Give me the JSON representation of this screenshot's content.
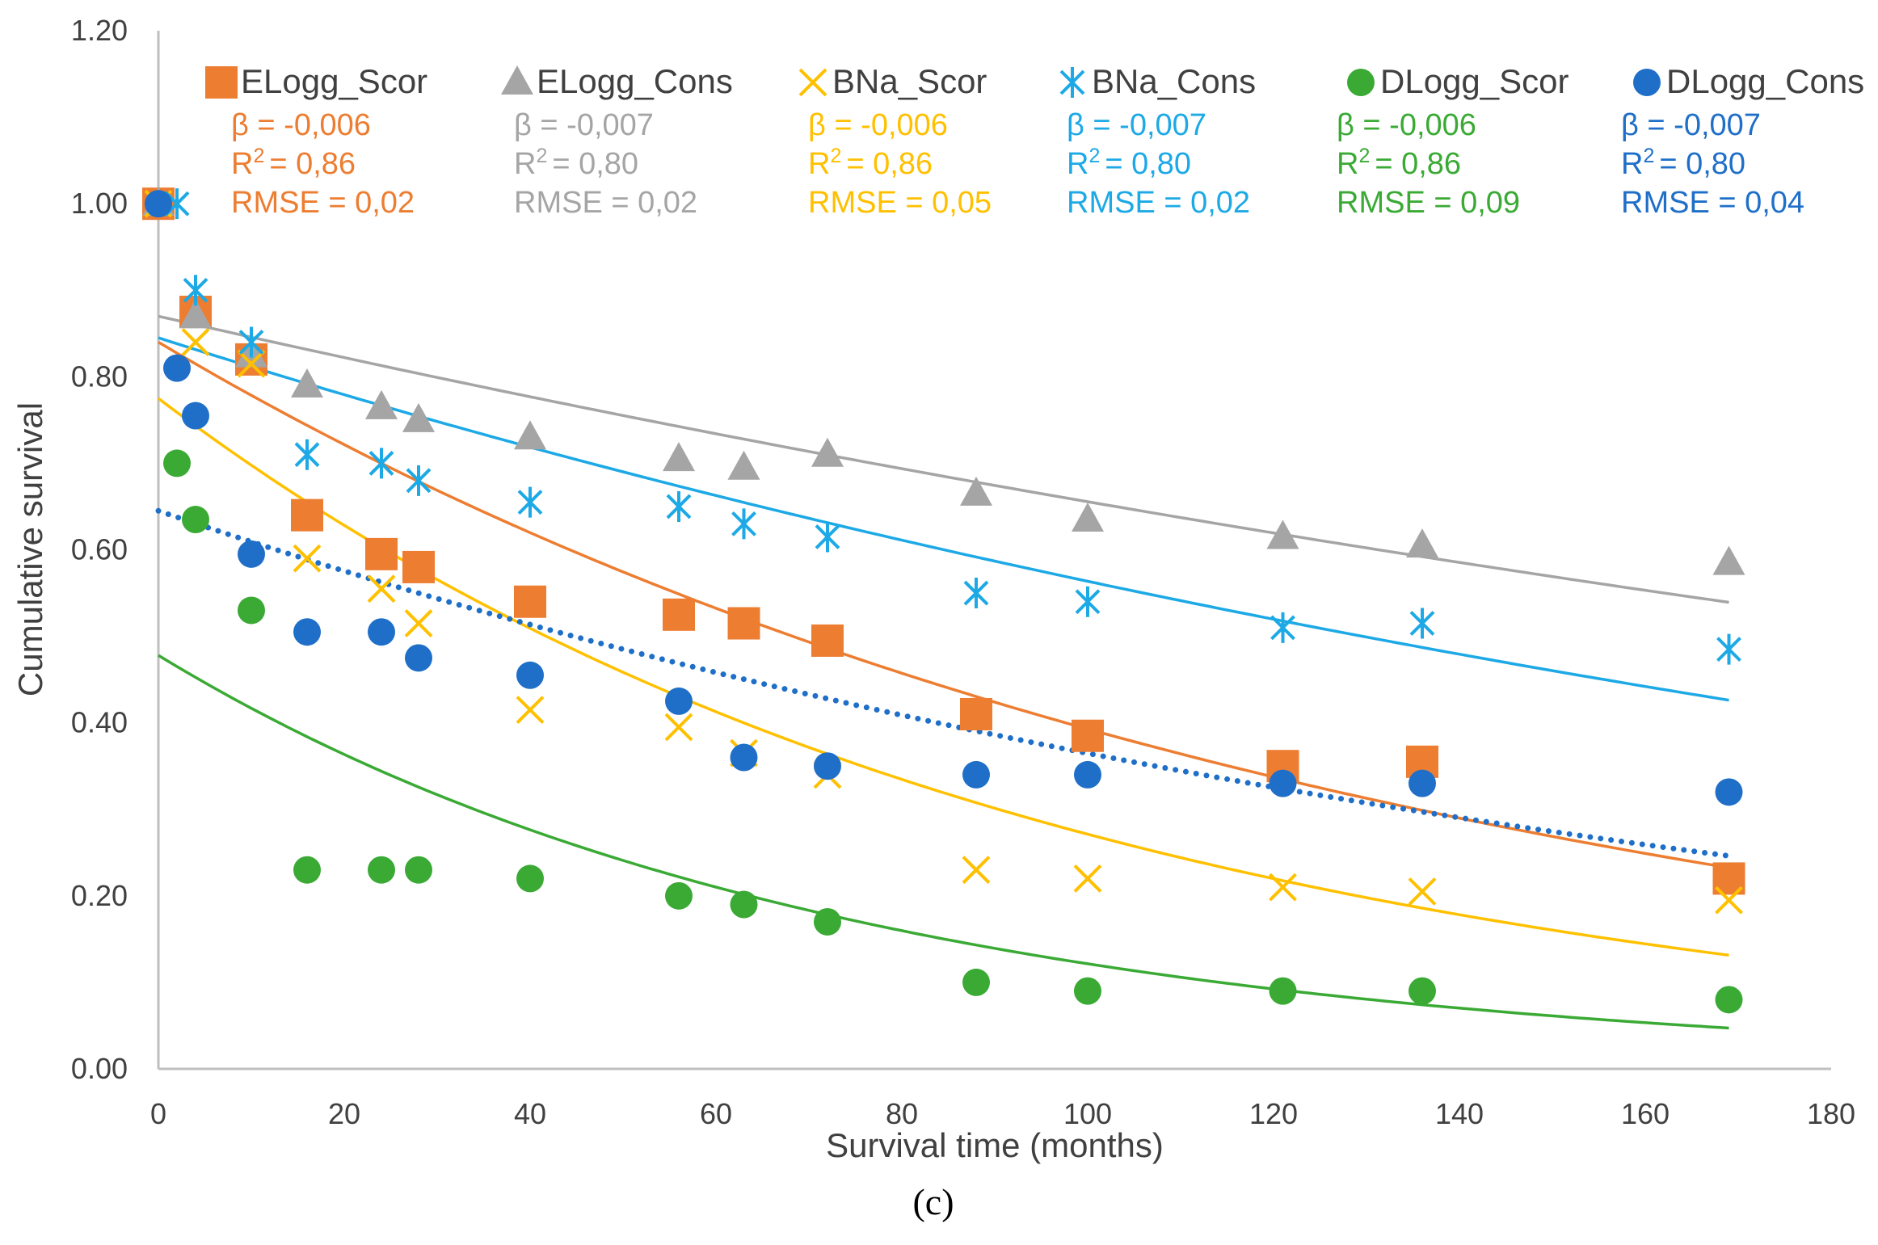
{
  "chart_data": {
    "type": "scatter",
    "xlabel": "Survival time (months)",
    "ylabel": "Cumulative survival",
    "caption": "(c)",
    "xlim": [
      0,
      180
    ],
    "ylim": [
      0,
      1.2
    ],
    "x_ticks": [
      0,
      20,
      40,
      60,
      80,
      100,
      120,
      140,
      160,
      180
    ],
    "x_tick_labels": [
      "0",
      "20",
      "40",
      "60",
      "80",
      "100",
      "120",
      "140",
      "160",
      "180"
    ],
    "y_ticks": [
      0,
      0.2,
      0.4,
      0.6,
      0.8,
      1.0,
      1.2
    ],
    "y_tick_labels": [
      "0.00",
      "0.20",
      "0.40",
      "0.60",
      "0.80",
      "1.00",
      "1.20"
    ],
    "gridlines": false,
    "legend_position": "top",
    "series": [
      {
        "name": "ELogg_Scor",
        "marker": "square",
        "color": "#ED7D31",
        "beta": "β = -0,006",
        "r2_label": "R",
        "r2_value": "= 0,86",
        "rmse": "RMSE = 0,02",
        "x": [
          0,
          4,
          10,
          16,
          24,
          28,
          40,
          56,
          63,
          72,
          88,
          100,
          121,
          136,
          169
        ],
        "y": [
          1.0,
          0.875,
          0.82,
          0.64,
          0.595,
          0.58,
          0.54,
          0.525,
          0.515,
          0.495,
          0.41,
          0.385,
          0.35,
          0.355,
          0.22
        ],
        "trend": {
          "type": "exponential",
          "a": 0.84,
          "b": -0.0076,
          "x_end": 169,
          "style": "solid"
        }
      },
      {
        "name": "ELogg_Cons",
        "marker": "triangle",
        "color": "#A5A5A5",
        "beta": "β = -0,007",
        "r2_label": "R",
        "r2_value": "= 0,80",
        "rmse": "RMSE = 0,02",
        "x": [
          0,
          4,
          10,
          16,
          24,
          28,
          40,
          56,
          63,
          72,
          88,
          100,
          121,
          136,
          169
        ],
        "y": [
          1.0,
          0.87,
          0.825,
          0.79,
          0.765,
          0.75,
          0.73,
          0.705,
          0.695,
          0.71,
          0.665,
          0.635,
          0.615,
          0.605,
          0.585
        ],
        "trend": {
          "type": "exponential",
          "a": 0.87,
          "b": -0.00283,
          "x_end": 169,
          "style": "solid"
        }
      },
      {
        "name": "BNa_Scor",
        "marker": "x",
        "color": "#FFC000",
        "beta": "β = -0,006",
        "r2_label": "R",
        "r2_value": "= 0,86",
        "rmse": "RMSE = 0,05",
        "x": [
          0,
          4,
          10,
          16,
          24,
          28,
          40,
          56,
          63,
          72,
          88,
          100,
          121,
          136,
          169
        ],
        "y": [
          1.0,
          0.84,
          0.815,
          0.59,
          0.555,
          0.515,
          0.415,
          0.395,
          0.365,
          0.34,
          0.23,
          0.22,
          0.21,
          0.205,
          0.195
        ],
        "trend": {
          "type": "exponential",
          "a": 0.775,
          "b": -0.0105,
          "x_end": 169,
          "style": "solid"
        }
      },
      {
        "name": "BNa_Cons",
        "marker": "asterisk",
        "color": "#1CA9E6",
        "beta": "β = -0,007",
        "r2_label": "R",
        "r2_value": "= 0,80",
        "rmse": "RMSE = 0,02",
        "x": [
          2,
          4,
          10,
          16,
          24,
          28,
          40,
          56,
          63,
          72,
          88,
          100,
          121,
          136,
          169
        ],
        "y": [
          1.0,
          0.9,
          0.84,
          0.71,
          0.7,
          0.68,
          0.655,
          0.65,
          0.63,
          0.615,
          0.55,
          0.54,
          0.51,
          0.515,
          0.485
        ],
        "trend": {
          "type": "exponential",
          "a": 0.845,
          "b": -0.00405,
          "x_end": 169,
          "style": "solid"
        }
      },
      {
        "name": "DLogg_Scor",
        "marker": "circle",
        "color": "#3AAA35",
        "beta": "β = -0,006",
        "r2_label": "R",
        "r2_value": "= 0,86",
        "rmse": "RMSE = 0,09",
        "x": [
          2,
          4,
          10,
          16,
          24,
          28,
          40,
          56,
          63,
          72,
          88,
          100,
          121,
          136,
          169
        ],
        "y": [
          0.7,
          0.635,
          0.53,
          0.23,
          0.23,
          0.23,
          0.22,
          0.2,
          0.19,
          0.17,
          0.1,
          0.09,
          0.09,
          0.09,
          0.08
        ],
        "trend": {
          "type": "exponential",
          "a": 0.478,
          "b": -0.0137,
          "x_end": 169,
          "style": "solid"
        }
      },
      {
        "name": "DLogg_Cons",
        "marker": "circle",
        "color": "#1F6FC8",
        "beta": "β = -0,007",
        "r2_label": "R",
        "r2_value": "= 0,80",
        "rmse": "RMSE = 0,04",
        "x": [
          0,
          2,
          4,
          10,
          16,
          24,
          28,
          40,
          56,
          63,
          72,
          88,
          100,
          121,
          136,
          169
        ],
        "y": [
          1.0,
          0.81,
          0.755,
          0.595,
          0.505,
          0.505,
          0.475,
          0.455,
          0.425,
          0.36,
          0.35,
          0.34,
          0.34,
          0.33,
          0.33,
          0.32
        ],
        "trend": {
          "type": "exponential",
          "a": 0.645,
          "b": -0.0057,
          "x_end": 169,
          "style": "dotted"
        }
      }
    ]
  }
}
